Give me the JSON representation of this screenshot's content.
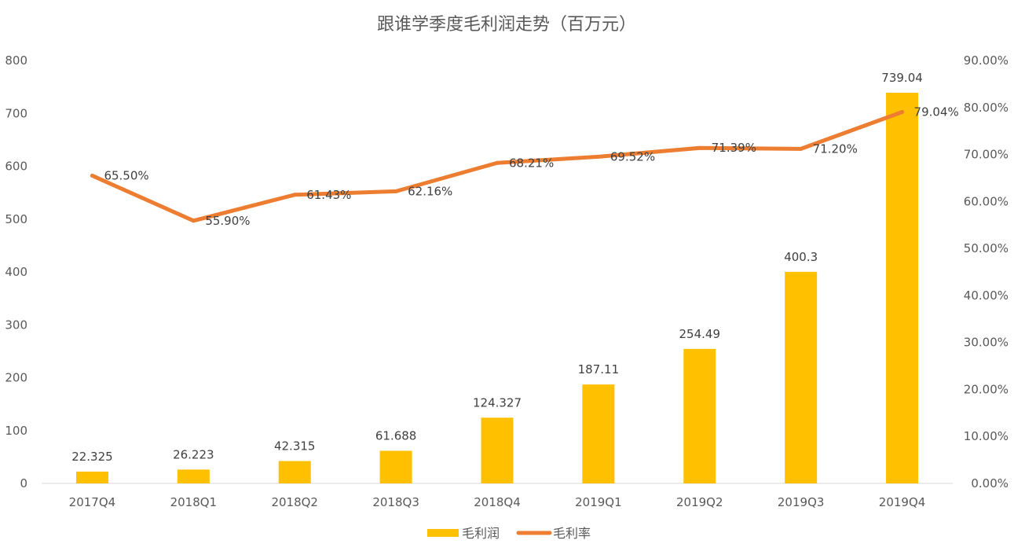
{
  "chart_data": {
    "type": "bar+line",
    "title": "跟谁学季度毛利润走势（百万元）",
    "categories": [
      "2017Q4",
      "2018Q1",
      "2018Q2",
      "2018Q3",
      "2018Q4",
      "2019Q1",
      "2019Q2",
      "2019Q3",
      "2019Q4"
    ],
    "series": [
      {
        "name": "毛利润",
        "type": "bar",
        "axis": "left",
        "color": "#FFC000",
        "values": [
          22.325,
          26.223,
          42.315,
          61.688,
          124.327,
          187.11,
          254.49,
          400.3,
          739.04
        ],
        "labels": [
          "22.325",
          "26.223",
          "42.315",
          "61.688",
          "124.327",
          "187.11",
          "254.49",
          "400.3",
          "739.04"
        ]
      },
      {
        "name": "毛利率",
        "type": "line",
        "axis": "right",
        "color": "#ED7D31",
        "values": [
          65.5,
          55.9,
          61.43,
          62.16,
          68.21,
          69.52,
          71.39,
          71.2,
          79.04
        ],
        "labels": [
          "65.50%",
          "55.90%",
          "61.43%",
          "62.16%",
          "68.21%",
          "69.52%",
          "71.39%",
          "71.20%",
          "79.04%"
        ]
      }
    ],
    "y_left": {
      "min": 0,
      "max": 800,
      "ticks": [
        "0",
        "100",
        "200",
        "300",
        "400",
        "500",
        "600",
        "700",
        "800"
      ]
    },
    "y_right": {
      "min": 0,
      "max": 90,
      "ticks": [
        "0.00%",
        "10.00%",
        "20.00%",
        "30.00%",
        "40.00%",
        "50.00%",
        "60.00%",
        "70.00%",
        "80.00%",
        "90.00%"
      ]
    },
    "legend": {
      "position": "bottom",
      "items": [
        "毛利润",
        "毛利率"
      ]
    },
    "grid": false
  }
}
